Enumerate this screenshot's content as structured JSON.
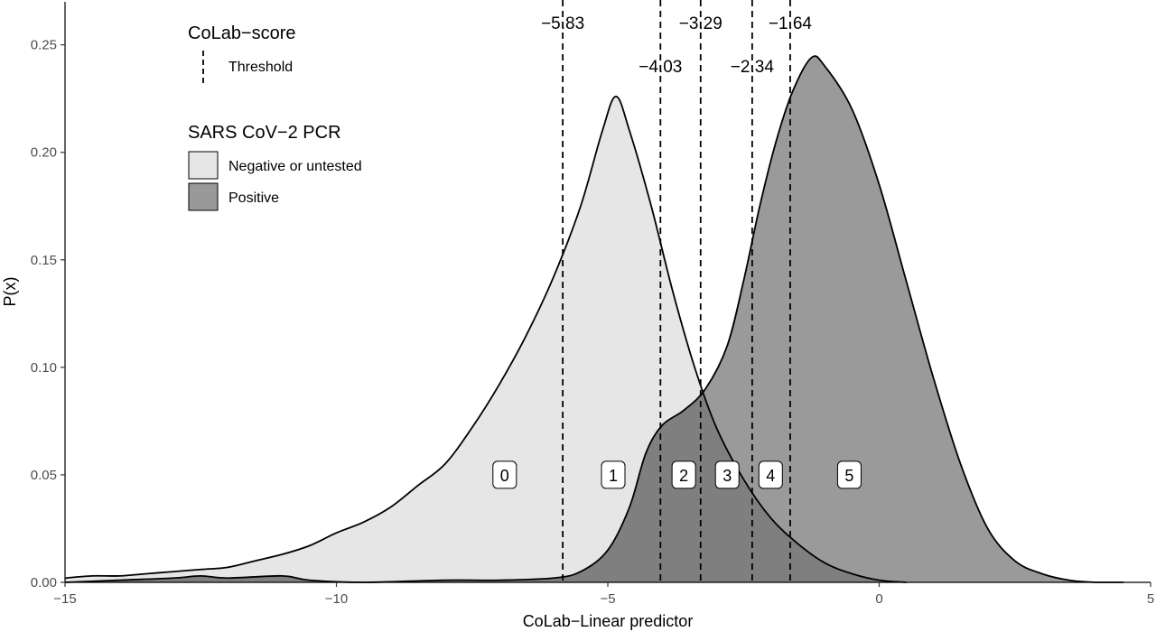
{
  "chart_data": {
    "type": "area",
    "xlabel": "CoLab−Linear predictor",
    "ylabel": "P(x)",
    "xlim": [
      -15,
      5
    ],
    "ylim": [
      0,
      0.27
    ],
    "x_ticks": [
      -15,
      -10,
      -5,
      0,
      5
    ],
    "x_tick_labels": [
      "−15",
      "−10",
      "−5",
      "0",
      "5"
    ],
    "y_ticks": [
      0,
      0.05,
      0.1,
      0.15,
      0.2,
      0.25
    ],
    "y_tick_labels": [
      "0.00",
      "0.05",
      "0.10",
      "0.15",
      "0.20",
      "0.25"
    ],
    "grid": false,
    "series": [
      {
        "name": "Negative or untested",
        "color": "#e6e6e6",
        "points": [
          [
            -15,
            0.002
          ],
          [
            -14.5,
            0.003
          ],
          [
            -14,
            0.003
          ],
          [
            -13.5,
            0.004
          ],
          [
            -13,
            0.005
          ],
          [
            -12.5,
            0.006
          ],
          [
            -12,
            0.007
          ],
          [
            -11.5,
            0.01
          ],
          [
            -11,
            0.013
          ],
          [
            -10.5,
            0.017
          ],
          [
            -10,
            0.023
          ],
          [
            -9.5,
            0.028
          ],
          [
            -9,
            0.035
          ],
          [
            -8.5,
            0.045
          ],
          [
            -8,
            0.055
          ],
          [
            -7.5,
            0.072
          ],
          [
            -7,
            0.092
          ],
          [
            -6.5,
            0.115
          ],
          [
            -6,
            0.142
          ],
          [
            -5.5,
            0.175
          ],
          [
            -5.1,
            0.21
          ],
          [
            -4.85,
            0.226
          ],
          [
            -4.6,
            0.21
          ],
          [
            -4.2,
            0.175
          ],
          [
            -3.8,
            0.135
          ],
          [
            -3.4,
            0.1
          ],
          [
            -3,
            0.072
          ],
          [
            -2.5,
            0.048
          ],
          [
            -2,
            0.03
          ],
          [
            -1.5,
            0.018
          ],
          [
            -1,
            0.009
          ],
          [
            -0.5,
            0.004
          ],
          [
            0,
            0.001
          ],
          [
            0.5,
            0.0
          ]
        ]
      },
      {
        "name": "Positive",
        "color": "#999999",
        "points": [
          [
            -15,
            0.0
          ],
          [
            -14,
            0.001
          ],
          [
            -13,
            0.002
          ],
          [
            -12.5,
            0.003
          ],
          [
            -12,
            0.002
          ],
          [
            -11,
            0.003
          ],
          [
            -10.5,
            0.001
          ],
          [
            -9.5,
            0.0
          ],
          [
            -8,
            0.001
          ],
          [
            -7,
            0.001
          ],
          [
            -6,
            0.002
          ],
          [
            -5.5,
            0.005
          ],
          [
            -5,
            0.015
          ],
          [
            -4.6,
            0.035
          ],
          [
            -4.3,
            0.06
          ],
          [
            -4,
            0.073
          ],
          [
            -3.6,
            0.08
          ],
          [
            -3.2,
            0.09
          ],
          [
            -2.8,
            0.11
          ],
          [
            -2.5,
            0.14
          ],
          [
            -2.2,
            0.175
          ],
          [
            -1.9,
            0.205
          ],
          [
            -1.6,
            0.228
          ],
          [
            -1.25,
            0.244
          ],
          [
            -1.0,
            0.24
          ],
          [
            -0.5,
            0.22
          ],
          [
            0,
            0.185
          ],
          [
            0.5,
            0.14
          ],
          [
            1,
            0.095
          ],
          [
            1.5,
            0.055
          ],
          [
            2,
            0.025
          ],
          [
            2.5,
            0.01
          ],
          [
            3,
            0.004
          ],
          [
            3.5,
            0.001
          ],
          [
            4,
            0.0
          ],
          [
            4.5,
            0.0
          ]
        ]
      }
    ],
    "thresholds": [
      {
        "x": -5.83,
        "label": "−5.83",
        "row": "top"
      },
      {
        "x": -4.03,
        "label": "−4.03",
        "row": "bottom"
      },
      {
        "x": -3.29,
        "label": "−3.29",
        "row": "top"
      },
      {
        "x": -2.34,
        "label": "−2.34",
        "row": "bottom"
      },
      {
        "x": -1.64,
        "label": "−1.64",
        "row": "top"
      }
    ],
    "score_labels": [
      {
        "label": "0",
        "x": -6.9,
        "y": 0.05
      },
      {
        "label": "1",
        "x": -4.9,
        "y": 0.05
      },
      {
        "label": "2",
        "x": -3.6,
        "y": 0.05
      },
      {
        "label": "3",
        "x": -2.8,
        "y": 0.05
      },
      {
        "label": "4",
        "x": -2.0,
        "y": 0.05
      },
      {
        "label": "5",
        "x": -0.55,
        "y": 0.05
      }
    ],
    "legend": {
      "placement": "top-left",
      "threshold_title": "CoLab−score",
      "threshold_label": "Threshold",
      "fill_title": "SARS CoV−2 PCR",
      "fill_items": [
        {
          "label": "Negative or untested",
          "color": "#e6e6e6"
        },
        {
          "label": "Positive",
          "color": "#999999"
        }
      ]
    }
  }
}
